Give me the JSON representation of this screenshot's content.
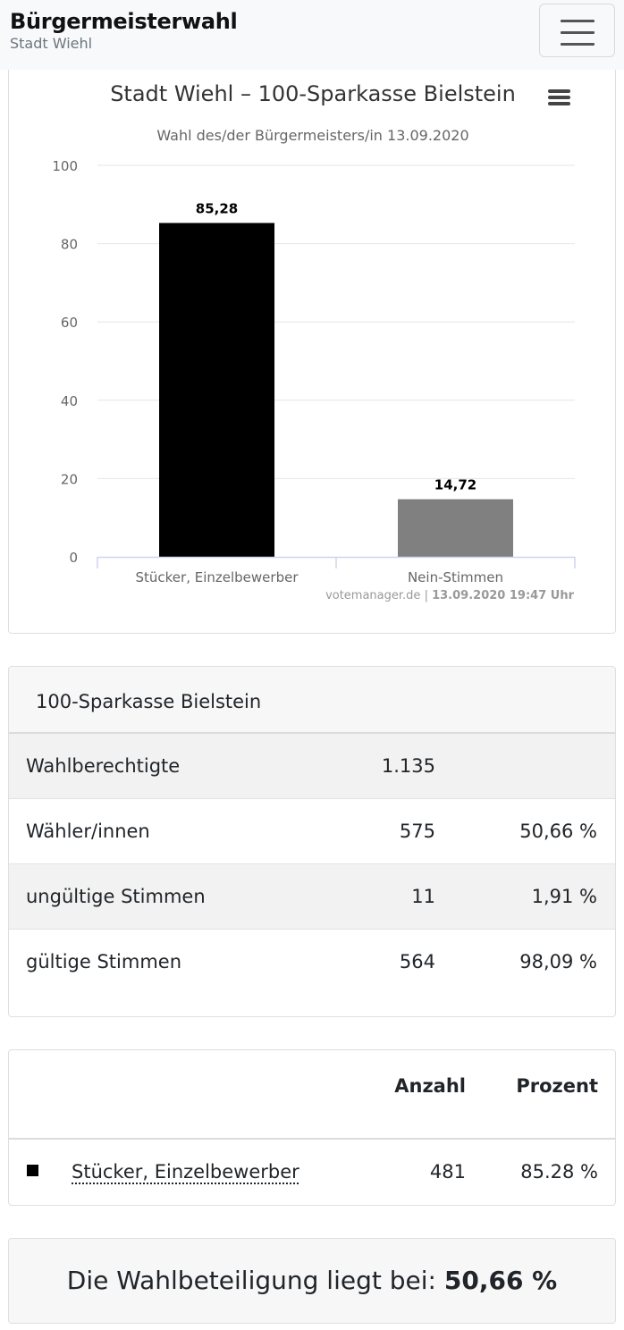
{
  "header": {
    "title": "Bürgermeisterwahl",
    "subtitle": "Stadt Wiehl"
  },
  "chart_data": {
    "type": "bar",
    "title": "Stadt Wiehl – 100-Sparkasse Bielstein",
    "subtitle": "Wahl des/der Bürgermeisters/in 13.09.2020",
    "categories": [
      "Stücker, Einzelbewerber",
      "Nein-Stimmen"
    ],
    "values": [
      85.28,
      14.72
    ],
    "value_labels": [
      "85,28",
      "14,72"
    ],
    "colors": [
      "#000000",
      "#808080"
    ],
    "ylim": [
      0,
      100
    ],
    "yticks": [
      0,
      20,
      40,
      60,
      80,
      100
    ],
    "xlabel": "",
    "ylabel": "",
    "grid": true,
    "credits": "votemanager.de",
    "credits_time": "13.09.2020 19:47 Uhr"
  },
  "stats": {
    "title": "100-Sparkasse Bielstein",
    "rows": [
      {
        "label": "Wahlberechtigte",
        "num": "1.135",
        "pct": ""
      },
      {
        "label": "Wähler/innen",
        "num": "575",
        "pct": "50,66 %"
      },
      {
        "label": "ungültige Stimmen",
        "num": "11",
        "pct": "1,91 %"
      },
      {
        "label": "gültige Stimmen",
        "num": "564",
        "pct": "98,09 %"
      }
    ]
  },
  "results": {
    "col_count": "Anzahl",
    "col_percent": "Prozent",
    "rows": [
      {
        "name": "Stücker, Einzelbewerber",
        "count": "481",
        "percent": "85.28 %",
        "color": "#000000"
      }
    ]
  },
  "turnout": {
    "prefix": "Die Wahlbeteiligung liegt bei:",
    "value": "50,66 %"
  }
}
